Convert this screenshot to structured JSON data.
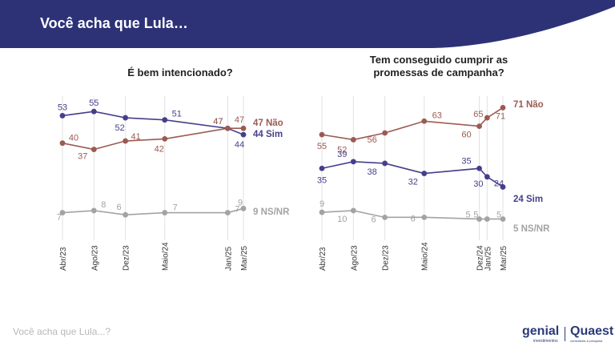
{
  "header": {
    "title": "Você acha que Lula…"
  },
  "footer": {
    "text": "Você acha que Lula...?"
  },
  "logos": {
    "genial": "genial",
    "genial_sub": "investimentos",
    "quaest": "Quaest",
    "quaest_sub": "consultoria & pesquisa"
  },
  "colors": {
    "header_bg": "#2d3277",
    "nao": "#9b5a52",
    "sim": "#453f8a",
    "nsnr": "#a3a3a3"
  },
  "chart_data": [
    {
      "type": "line",
      "title": "É bem intencionado?",
      "x": [
        "Abr/23",
        "Ago/23",
        "Dez/23",
        "Maio/24",
        "Jan/25",
        "Mar/25"
      ],
      "x_positions": [
        0,
        4,
        8,
        13,
        21,
        23
      ],
      "series": [
        {
          "name": "Sim",
          "values": [
            53,
            55,
            52,
            51,
            47,
            44
          ],
          "end_label": "44 Sim"
        },
        {
          "name": "Não",
          "values": [
            40,
            37,
            41,
            42,
            47,
            47
          ],
          "end_label": "47 Não"
        },
        {
          "name": "NS/NR",
          "values": [
            7,
            8,
            6,
            7,
            7,
            9
          ],
          "end_label": "9 NS/NR"
        }
      ],
      "grid": "vertical"
    },
    {
      "type": "line",
      "title": "Tem conseguido cumprir as promessas de campanha?",
      "title_lines": [
        "Tem conseguido cumprir as",
        "promessas de campanha?"
      ],
      "x": [
        "Abr/23",
        "Ago/23",
        "Dez/23",
        "Maio/24",
        "Dez/24",
        "Jan/25",
        "Mar/25"
      ],
      "x_positions": [
        0,
        4,
        8,
        13,
        20,
        21,
        23
      ],
      "series": [
        {
          "name": "Não",
          "values": [
            55,
            52,
            56,
            63,
            60,
            65,
            71
          ],
          "end_label": "71 Não"
        },
        {
          "name": "Sim",
          "values": [
            35,
            39,
            38,
            32,
            35,
            30,
            24
          ],
          "end_label": "24 Sim"
        },
        {
          "name": "NS/NR",
          "values": [
            9,
            10,
            6,
            6,
            5,
            5,
            5
          ],
          "end_label": "5 NS/NR"
        }
      ],
      "grid": "vertical"
    }
  ]
}
